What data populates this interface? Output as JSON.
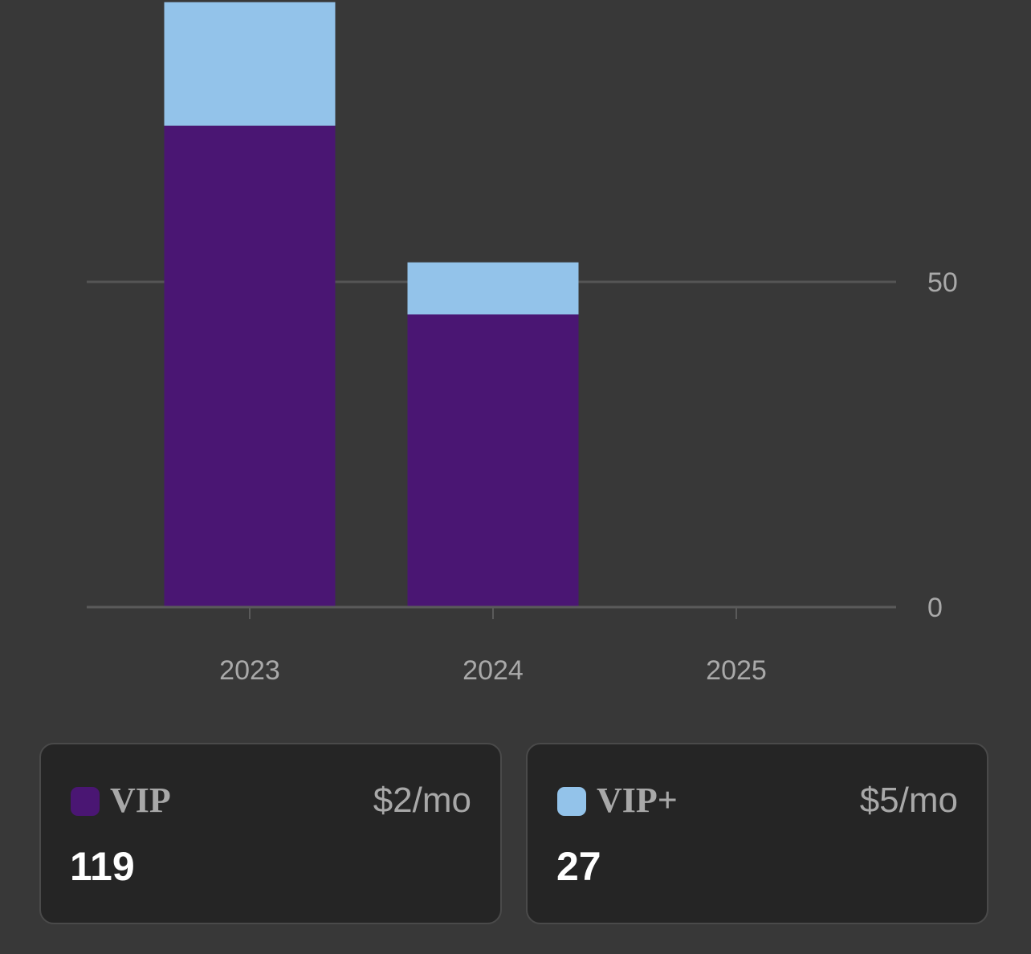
{
  "chart_data": {
    "type": "bar",
    "stacked": true,
    "categories": [
      "2023",
      "2024",
      "2025"
    ],
    "series": [
      {
        "name": "VIP",
        "values": [
          74,
          45,
          0
        ],
        "color": "#4a1673"
      },
      {
        "name": "VIP+",
        "values": [
          19,
          8,
          0
        ],
        "color": "#93c3ea"
      }
    ],
    "y_ticks": [
      0,
      50
    ],
    "y_tick_labels": [
      "0",
      "50"
    ],
    "ylim": [
      0,
      93
    ],
    "y_axis_position": "right",
    "grid": true,
    "colors": {
      "gridline": "#555555",
      "axis": "#5a5a5a",
      "tick_label": "#a9a9a9",
      "background": "#383838"
    }
  },
  "legend_cards": [
    {
      "name": "VIP",
      "price": "$2/mo",
      "count": "119",
      "color": "#4a1673"
    },
    {
      "name": "VIP+",
      "price": "$5/mo",
      "count": "27",
      "color": "#93c3ea"
    }
  ]
}
